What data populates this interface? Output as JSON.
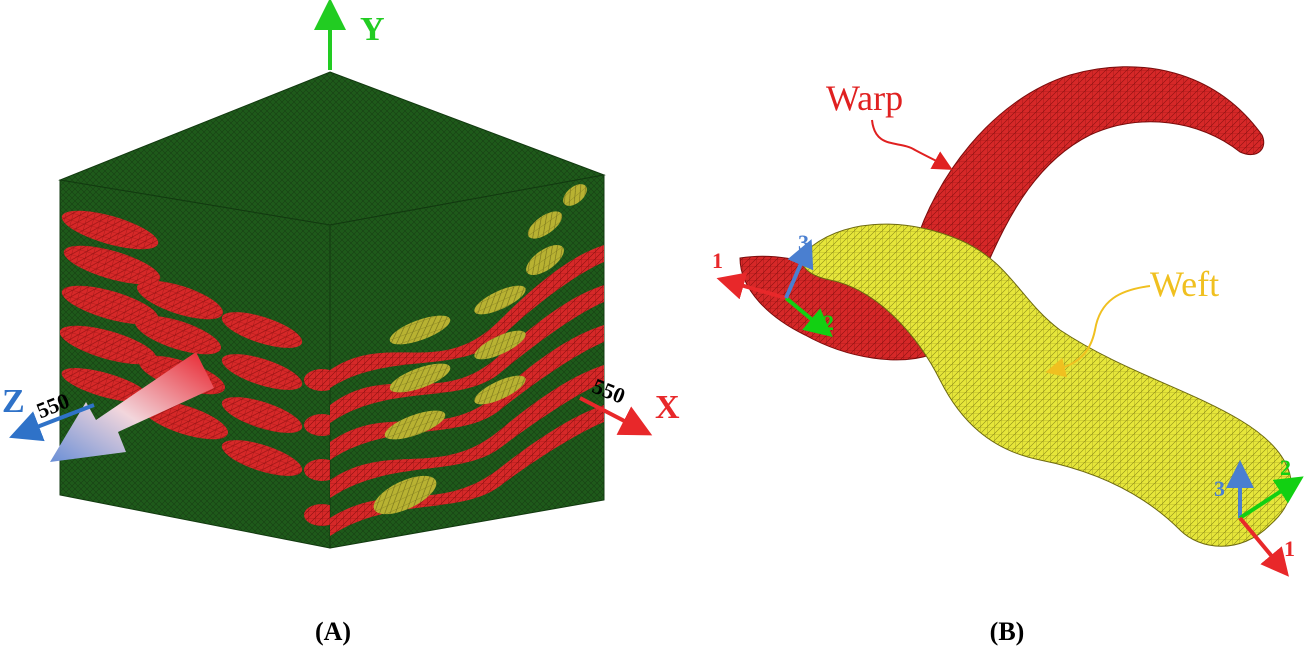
{
  "panel_a": {
    "caption": "(A)",
    "axis_y": "Y",
    "axis_x": "X",
    "axis_z": "Z",
    "dim_x": "550",
    "dim_z": "550",
    "colors": {
      "matrix": "#1f5a1a",
      "warp": "#d42525",
      "weft": "#c9c233"
    }
  },
  "panel_b": {
    "caption": "(B)",
    "warp_label": "Warp",
    "weft_label": "Weft",
    "local_axes_left": {
      "one": "1",
      "two": "2",
      "three": "3"
    },
    "local_axes_right": {
      "one": "1",
      "two": "2",
      "three": "3"
    },
    "colors": {
      "warp": "#e02020",
      "weft": "#ecec3a",
      "axis1": "#e8282a",
      "axis2": "#12d012",
      "axis3": "#4a7fd0"
    }
  }
}
